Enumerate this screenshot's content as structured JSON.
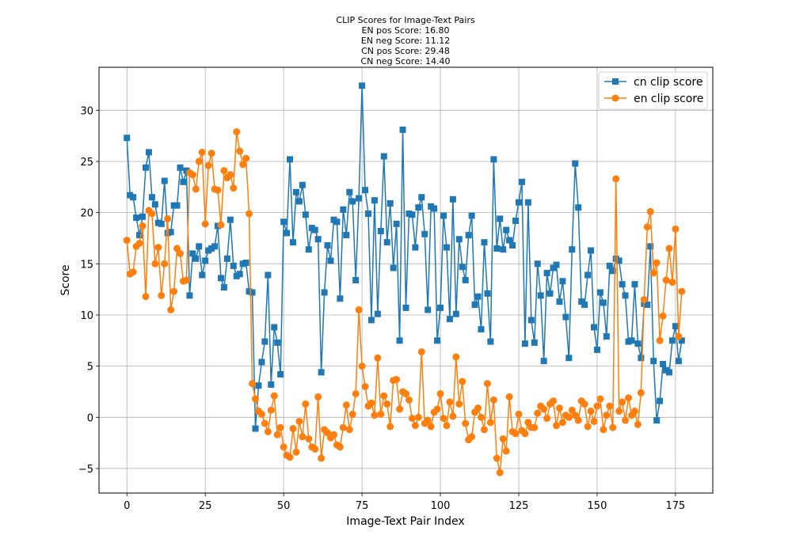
{
  "chart_data": {
    "type": "line",
    "title_lines": [
      "CLIP Scores for Image-Text Pairs",
      "EN pos Score: 16.80",
      "EN neg Score: 11.12",
      "CN pos Score: 29.48",
      "CN neg Score: 14.40"
    ],
    "xlabel": "Image-Text Pair Index",
    "ylabel": "Score",
    "xlim": [
      -8.9,
      186.9
    ],
    "ylim": [
      -7.4,
      34.2
    ],
    "xticks": [
      0,
      25,
      50,
      75,
      100,
      125,
      150,
      175
    ],
    "xtick_labels": [
      "0",
      "25",
      "50",
      "75",
      "100",
      "125",
      "150",
      "175"
    ],
    "yticks": [
      -5,
      0,
      5,
      10,
      15,
      20,
      25,
      30
    ],
    "ytick_labels": [
      "−5",
      "0",
      "5",
      "10",
      "15",
      "20",
      "25",
      "30"
    ],
    "grid": true,
    "legend_position": "upper right",
    "x_start": 0,
    "series": [
      {
        "name": "cn clip score",
        "color": "#1f77b4",
        "marker": "square",
        "values": [
          27.3,
          21.7,
          21.5,
          19.5,
          17.8,
          19.6,
          24.4,
          25.9,
          21.5,
          20.8,
          19.0,
          18.9,
          23.1,
          18.0,
          18.1,
          20.7,
          20.7,
          24.4,
          23.0,
          24.1,
          11.9,
          16.0,
          15.5,
          16.7,
          13.9,
          15.3,
          16.3,
          16.5,
          16.7,
          18.7,
          13.6,
          12.7,
          15.5,
          19.3,
          14.8,
          13.8,
          14.0,
          15.0,
          15.1,
          12.3,
          12.2,
          -1.1,
          3.1,
          5.4,
          7.4,
          13.9,
          3.2,
          8.8,
          7.3,
          4.2,
          19.1,
          18.0,
          25.2,
          17.1,
          22.0,
          21.1,
          22.7,
          19.8,
          16.4,
          18.5,
          18.3,
          17.4,
          4.4,
          12.2,
          16.8,
          15.3,
          19.3,
          19.1,
          11.6,
          20.3,
          17.8,
          22.0,
          21.1,
          13.4,
          21.4,
          32.4,
          22.2,
          19.9,
          9.5,
          21.2,
          10.1,
          18.2,
          25.5,
          17.1,
          20.9,
          14.6,
          18.9,
          7.5,
          28.1,
          10.7,
          19.9,
          19.8,
          16.6,
          20.5,
          21.5,
          17.9,
          10.5,
          20.6,
          20.4,
          7.5,
          10.7,
          19.7,
          16.6,
          9.6,
          21.3,
          10.1,
          17.4,
          14.7,
          13.4,
          17.8,
          19.7,
          11.0,
          11.8,
          8.6,
          17.1,
          12.1,
          7.4,
          25.2,
          16.5,
          19.4,
          16.4,
          18.3,
          17.3,
          16.8,
          19.2,
          21.0,
          23.0,
          7.2,
          21.0,
          9.5,
          7.3,
          15.0,
          11.9,
          5.5,
          14.1,
          12.1,
          14.6,
          14.9,
          11.3,
          13.3,
          9.8,
          5.8,
          16.4,
          24.8,
          20.5,
          11.3,
          11.0,
          13.9,
          16.3,
          8.8,
          6.6,
          12.2,
          11.2,
          7.9,
          14.8,
          14.3,
          15.5,
          15.3,
          13.0,
          11.9,
          7.4,
          7.5,
          13.0,
          7.2,
          5.8,
          11.1,
          11.0,
          16.7,
          5.5,
          -0.3,
          1.6,
          5.2,
          4.6,
          4.4,
          7.5,
          8.9,
          5.5,
          7.5
        ]
      },
      {
        "name": "en clip score",
        "color": "#ff7f0e",
        "marker": "circle",
        "values": [
          17.3,
          14.0,
          14.2,
          16.7,
          17.0,
          18.7,
          11.8,
          20.2,
          19.9,
          15.0,
          16.6,
          11.9,
          15.0,
          19.4,
          10.5,
          12.3,
          16.5,
          16.0,
          13.3,
          13.4,
          23.9,
          23.7,
          22.3,
          25.0,
          25.9,
          18.9,
          24.6,
          25.8,
          22.3,
          22.2,
          18.8,
          24.1,
          23.4,
          23.7,
          22.4,
          27.9,
          26.0,
          24.7,
          25.3,
          19.9,
          3.3,
          1.8,
          0.6,
          0.3,
          -0.6,
          -1.4,
          0.7,
          2.1,
          -1.7,
          -1.0,
          -2.9,
          -3.7,
          -3.9,
          -1.1,
          -3.4,
          -0.4,
          -1.9,
          1.3,
          -2.1,
          -2.9,
          -3.1,
          2.0,
          -4.0,
          -1.2,
          -1.5,
          -2.0,
          -1.7,
          -2.7,
          -2.9,
          -1.0,
          1.2,
          -1.2,
          0.3,
          2.3,
          10.5,
          5.0,
          3.0,
          1.1,
          1.4,
          0.2,
          5.8,
          0.3,
          2.1,
          1.3,
          -0.9,
          3.6,
          3.7,
          0.8,
          2.5,
          2.3,
          1.7,
          -0.1,
          -0.8,
          0.0,
          6.4,
          -0.6,
          -0.3,
          -0.9,
          0.5,
          0.8,
          2.3,
          -0.1,
          -0.8,
          1.5,
          0.1,
          5.9,
          1.3,
          3.5,
          -0.6,
          -2.2,
          -1.9,
          0.5,
          0.9,
          0.0,
          -1.2,
          3.3,
          -0.5,
          1.7,
          -4.0,
          -5.4,
          -2.1,
          -3.3,
          2.0,
          -1.4,
          -1.6,
          0.3,
          -1.3,
          -1.6,
          -0.5,
          -1.0,
          -1.0,
          0.4,
          1.1,
          0.8,
          -0.1,
          1.3,
          1.6,
          -0.8,
          0.9,
          -0.5,
          0.2,
          0.0,
          0.7,
          0.2,
          -0.3,
          1.6,
          1.3,
          -0.9,
          0.6,
          -0.4,
          1.1,
          1.8,
          -1.2,
          0.2,
          1.1,
          -1.0,
          23.3,
          0.6,
          1.5,
          -0.3,
          1.9,
          0.2,
          0.6,
          -0.7,
          2.4,
          11.5,
          18.6,
          20.1,
          14.1,
          15.1,
          7.5,
          9.9,
          13.4,
          16.5,
          13.2,
          18.4,
          7.9,
          12.3
        ]
      }
    ]
  }
}
